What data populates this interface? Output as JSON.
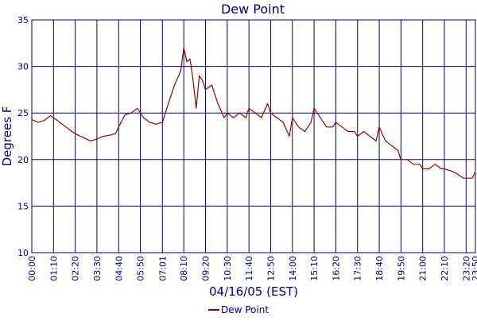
{
  "chart_data": {
    "type": "line",
    "title": "Dew Point",
    "xlabel": "04/16/05 (EST)",
    "ylabel": "Degrees F",
    "ylim": [
      10,
      35
    ],
    "yticks": [
      10,
      15,
      20,
      25,
      30,
      35
    ],
    "xlim": [
      "00:00",
      "23:50"
    ],
    "xticks": [
      "00:00",
      "01:10",
      "02:20",
      "03:30",
      "04:40",
      "05:50",
      "07:01",
      "08:10",
      "09:20",
      "10:30",
      "11:40",
      "12:50",
      "14:00",
      "15:10",
      "16:20",
      "17:30",
      "18:40",
      "19:50",
      "21:00",
      "22:10",
      "23:20",
      "23:50"
    ],
    "grid": true,
    "legend": "bottom-center",
    "colors": {
      "title": "#000080",
      "axis_text": "#000080",
      "grid": "#000080",
      "series": "#990000"
    },
    "series": [
      {
        "name": "Dew Point",
        "x": [
          "00:00",
          "00:20",
          "00:40",
          "01:00",
          "01:10",
          "01:30",
          "01:50",
          "02:10",
          "02:30",
          "02:50",
          "03:10",
          "03:30",
          "03:50",
          "04:10",
          "04:30",
          "04:40",
          "05:00",
          "05:20",
          "05:40",
          "06:00",
          "06:20",
          "06:40",
          "07:01",
          "07:20",
          "07:40",
          "08:00",
          "08:10",
          "08:20",
          "08:30",
          "08:40",
          "08:50",
          "09:00",
          "09:10",
          "09:20",
          "09:40",
          "10:00",
          "10:20",
          "10:30",
          "10:50",
          "11:10",
          "11:30",
          "11:40",
          "12:00",
          "12:20",
          "12:40",
          "12:50",
          "13:10",
          "13:30",
          "13:50",
          "14:00",
          "14:20",
          "14:40",
          "15:00",
          "15:10",
          "15:30",
          "15:50",
          "16:10",
          "16:20",
          "16:40",
          "17:00",
          "17:20",
          "17:30",
          "17:50",
          "18:10",
          "18:30",
          "18:40",
          "19:00",
          "19:20",
          "19:40",
          "19:50",
          "20:10",
          "20:30",
          "20:50",
          "21:00",
          "21:20",
          "21:40",
          "22:00",
          "22:10",
          "22:30",
          "22:50",
          "23:10",
          "23:20",
          "23:40",
          "23:50"
        ],
        "values": [
          24.3,
          24.0,
          24.2,
          24.7,
          24.5,
          24.0,
          23.5,
          23.0,
          22.6,
          22.3,
          22.0,
          22.2,
          22.5,
          22.6,
          22.8,
          23.5,
          24.8,
          25.0,
          25.5,
          24.5,
          24.0,
          23.8,
          24.0,
          26.0,
          28.0,
          29.5,
          32.0,
          30.5,
          30.8,
          28.5,
          25.5,
          29.0,
          28.5,
          27.5,
          28.0,
          26.0,
          24.5,
          25.0,
          24.5,
          25.0,
          24.5,
          25.5,
          25.0,
          24.5,
          26.0,
          25.0,
          24.5,
          24.0,
          22.5,
          24.5,
          23.5,
          23.0,
          24.0,
          25.5,
          24.5,
          23.5,
          23.5,
          24.0,
          23.5,
          23.0,
          23.0,
          22.5,
          23.0,
          22.5,
          22.0,
          23.5,
          22.0,
          21.5,
          21.0,
          20.0,
          20.0,
          19.5,
          19.5,
          19.0,
          19.0,
          19.5,
          19.0,
          19.0,
          18.8,
          18.5,
          18.0,
          18.0,
          18.0,
          18.7
        ]
      }
    ]
  }
}
